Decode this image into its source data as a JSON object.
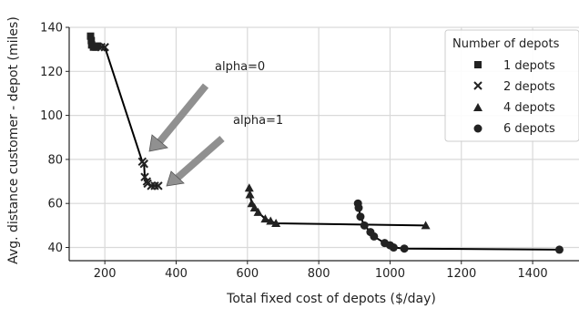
{
  "chart_data": {
    "type": "line",
    "title": "",
    "xlabel": "Total fixed cost of depots ($/day)",
    "ylabel": "Avg. distance customer - depot (miles)",
    "xlim": [
      100,
      1530
    ],
    "ylim": [
      34,
      140
    ],
    "x_ticks": [
      200,
      400,
      600,
      800,
      1000,
      1200,
      1400
    ],
    "y_ticks": [
      40,
      60,
      80,
      100,
      120,
      140
    ],
    "grid": true,
    "legend": {
      "title": "Number of depots",
      "placement": "top-right",
      "entries": [
        "1 depots",
        "2 depots",
        "4 depots",
        "6 depots"
      ]
    },
    "annotations": [
      {
        "text": "alpha=0"
      },
      {
        "text": "alpha=1"
      }
    ],
    "line_color": "#000000",
    "arrow_color": "#909090",
    "series": [
      {
        "name": "1 depots",
        "marker": "square",
        "points": [
          [
            160,
            136
          ],
          [
            162,
            134
          ],
          [
            163,
            132
          ],
          [
            168,
            131
          ],
          [
            175,
            131
          ],
          [
            180,
            131.5
          ]
        ]
      },
      {
        "name": "2 depots",
        "marker": "x",
        "points": [
          [
            190,
            131
          ],
          [
            200,
            131
          ],
          [
            305,
            79
          ],
          [
            310,
            78
          ],
          [
            312,
            72
          ],
          [
            318,
            70
          ],
          [
            320,
            69
          ],
          [
            330,
            68
          ],
          [
            340,
            68
          ],
          [
            350,
            68
          ]
        ]
      },
      {
        "name": "4 depots",
        "marker": "triangle",
        "points": [
          [
            605,
            67
          ],
          [
            607,
            64
          ],
          [
            612,
            60
          ],
          [
            620,
            58
          ],
          [
            630,
            56
          ],
          [
            650,
            53
          ],
          [
            665,
            52
          ],
          [
            680,
            51
          ],
          [
            1100,
            50
          ]
        ]
      },
      {
        "name": "6 depots",
        "marker": "circle",
        "points": [
          [
            910,
            60
          ],
          [
            912,
            58
          ],
          [
            917,
            54
          ],
          [
            928,
            50
          ],
          [
            945,
            47
          ],
          [
            955,
            45
          ],
          [
            985,
            42
          ],
          [
            1000,
            41
          ],
          [
            1010,
            40
          ],
          [
            1040,
            39.5
          ],
          [
            1475,
            39
          ]
        ]
      }
    ]
  }
}
